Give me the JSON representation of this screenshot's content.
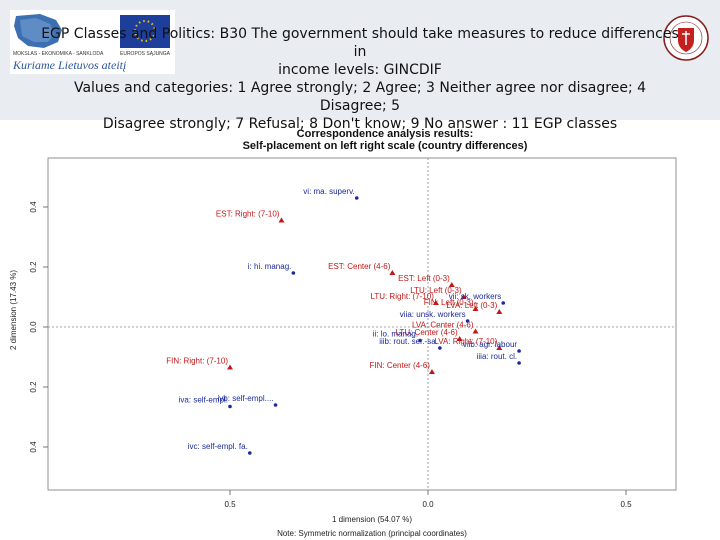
{
  "slide": {
    "title_line1": "EGP Classes and Politics: B30 The government should take measures to reduce differences in",
    "title_line2": "income levels: GINCDIF",
    "title_line3": "Values and categories: 1 Agree strongly; 2 Agree; 3 Neither agree nor disagree; 4 Disagree; 5",
    "title_line4": "Disagree strongly; 7 Refusal; 8 Don't know; 9 No answer : 11 EGP classes",
    "logo_text_1": "MOKSLAS - EKONOMIKA - SANKLODA",
    "logo_text_2": "EUROPOS SĄJUNGA",
    "logo_slogan": "Kuriame Lietuvos ateitį"
  },
  "colors": {
    "header_bg": "#e9edf2",
    "class_points": "#1a2a9c",
    "country_points": "#c01818",
    "grid": "#888888"
  },
  "chart_data": {
    "type": "scatter",
    "title": "Correspondence analysis results:",
    "subtitle": "Self-placement on left right scale (country differences)",
    "xlabel": "1 dimension (54.07 %)",
    "ylabel": "2 dimension (17.43 %)",
    "note": "Note: Symmetric normalization (principal coordinates)",
    "xlim": [
      -0.5,
      0.5
    ],
    "ylim": [
      -0.45,
      0.45
    ],
    "x_ticks": [
      {
        "v": -0.5,
        "label": "0.5"
      },
      {
        "v": 0.0,
        "label": "0.0"
      },
      {
        "v": 0.5,
        "label": "0.5"
      }
    ],
    "y_ticks": [
      {
        "v": 0.4,
        "label": "0.4"
      },
      {
        "v": 0.2,
        "label": "0.2"
      },
      {
        "v": 0.0,
        "label": "0.0"
      },
      {
        "v": -0.2,
        "label": "0.2"
      },
      {
        "v": -0.4,
        "label": "0.4"
      }
    ],
    "points": [
      {
        "label": "vi: ma. superv.",
        "x": -0.18,
        "y": 0.43,
        "group": "class"
      },
      {
        "label": "EST: Right: (7-10)",
        "x": -0.37,
        "y": 0.355,
        "group": "country"
      },
      {
        "label": "i: hi. manag.",
        "x": -0.34,
        "y": 0.18,
        "group": "class"
      },
      {
        "label": "EST: Center (4-6)",
        "x": -0.09,
        "y": 0.18,
        "group": "country"
      },
      {
        "label": "EST: Left (0-3)",
        "x": 0.06,
        "y": 0.14,
        "group": "country"
      },
      {
        "label": "LTU: Left (0-3)",
        "x": 0.09,
        "y": 0.1,
        "group": "country"
      },
      {
        "label": "LTU: Right: (7-10)",
        "x": 0.02,
        "y": 0.08,
        "group": "country"
      },
      {
        "label": "vii: sk. workers",
        "x": 0.19,
        "y": 0.08,
        "group": "class"
      },
      {
        "label": "FIN: Left (0-3)",
        "x": 0.12,
        "y": 0.06,
        "group": "country"
      },
      {
        "label": "LVA: Left (0-3)",
        "x": 0.18,
        "y": 0.05,
        "group": "country"
      },
      {
        "label": "viia: unsk. workers",
        "x": 0.1,
        "y": 0.02,
        "group": "class"
      },
      {
        "label": "LVA: Center (4-6)",
        "x": 0.12,
        "y": -0.015,
        "group": "country"
      },
      {
        "label": "LTU: Center (4-6)",
        "x": 0.08,
        "y": -0.04,
        "group": "country"
      },
      {
        "label": "ii: lo. manag.",
        "x": -0.02,
        "y": -0.045,
        "group": "class"
      },
      {
        "label": "iiib: rout. ser.-sa.",
        "x": 0.03,
        "y": -0.07,
        "group": "class"
      },
      {
        "label": "LVA: Right: (7-10)",
        "x": 0.18,
        "y": -0.07,
        "group": "country"
      },
      {
        "label": "viib: agr. labour",
        "x": 0.23,
        "y": -0.08,
        "group": "class"
      },
      {
        "label": "iiia: rout. cl.",
        "x": 0.23,
        "y": -0.12,
        "group": "class"
      },
      {
        "label": "FIN: Right: (7-10)",
        "x": -0.5,
        "y": -0.135,
        "group": "country"
      },
      {
        "label": "FIN: Center (4-6)",
        "x": 0.01,
        "y": -0.15,
        "group": "country"
      },
      {
        "label": "iva: self-empl.",
        "x": -0.5,
        "y": -0.265,
        "group": "class"
      },
      {
        "label": "ivb: self-empl....",
        "x": -0.385,
        "y": -0.26,
        "group": "class"
      },
      {
        "label": "ivc: self-empl. fa.",
        "x": -0.45,
        "y": -0.42,
        "group": "class"
      }
    ]
  }
}
